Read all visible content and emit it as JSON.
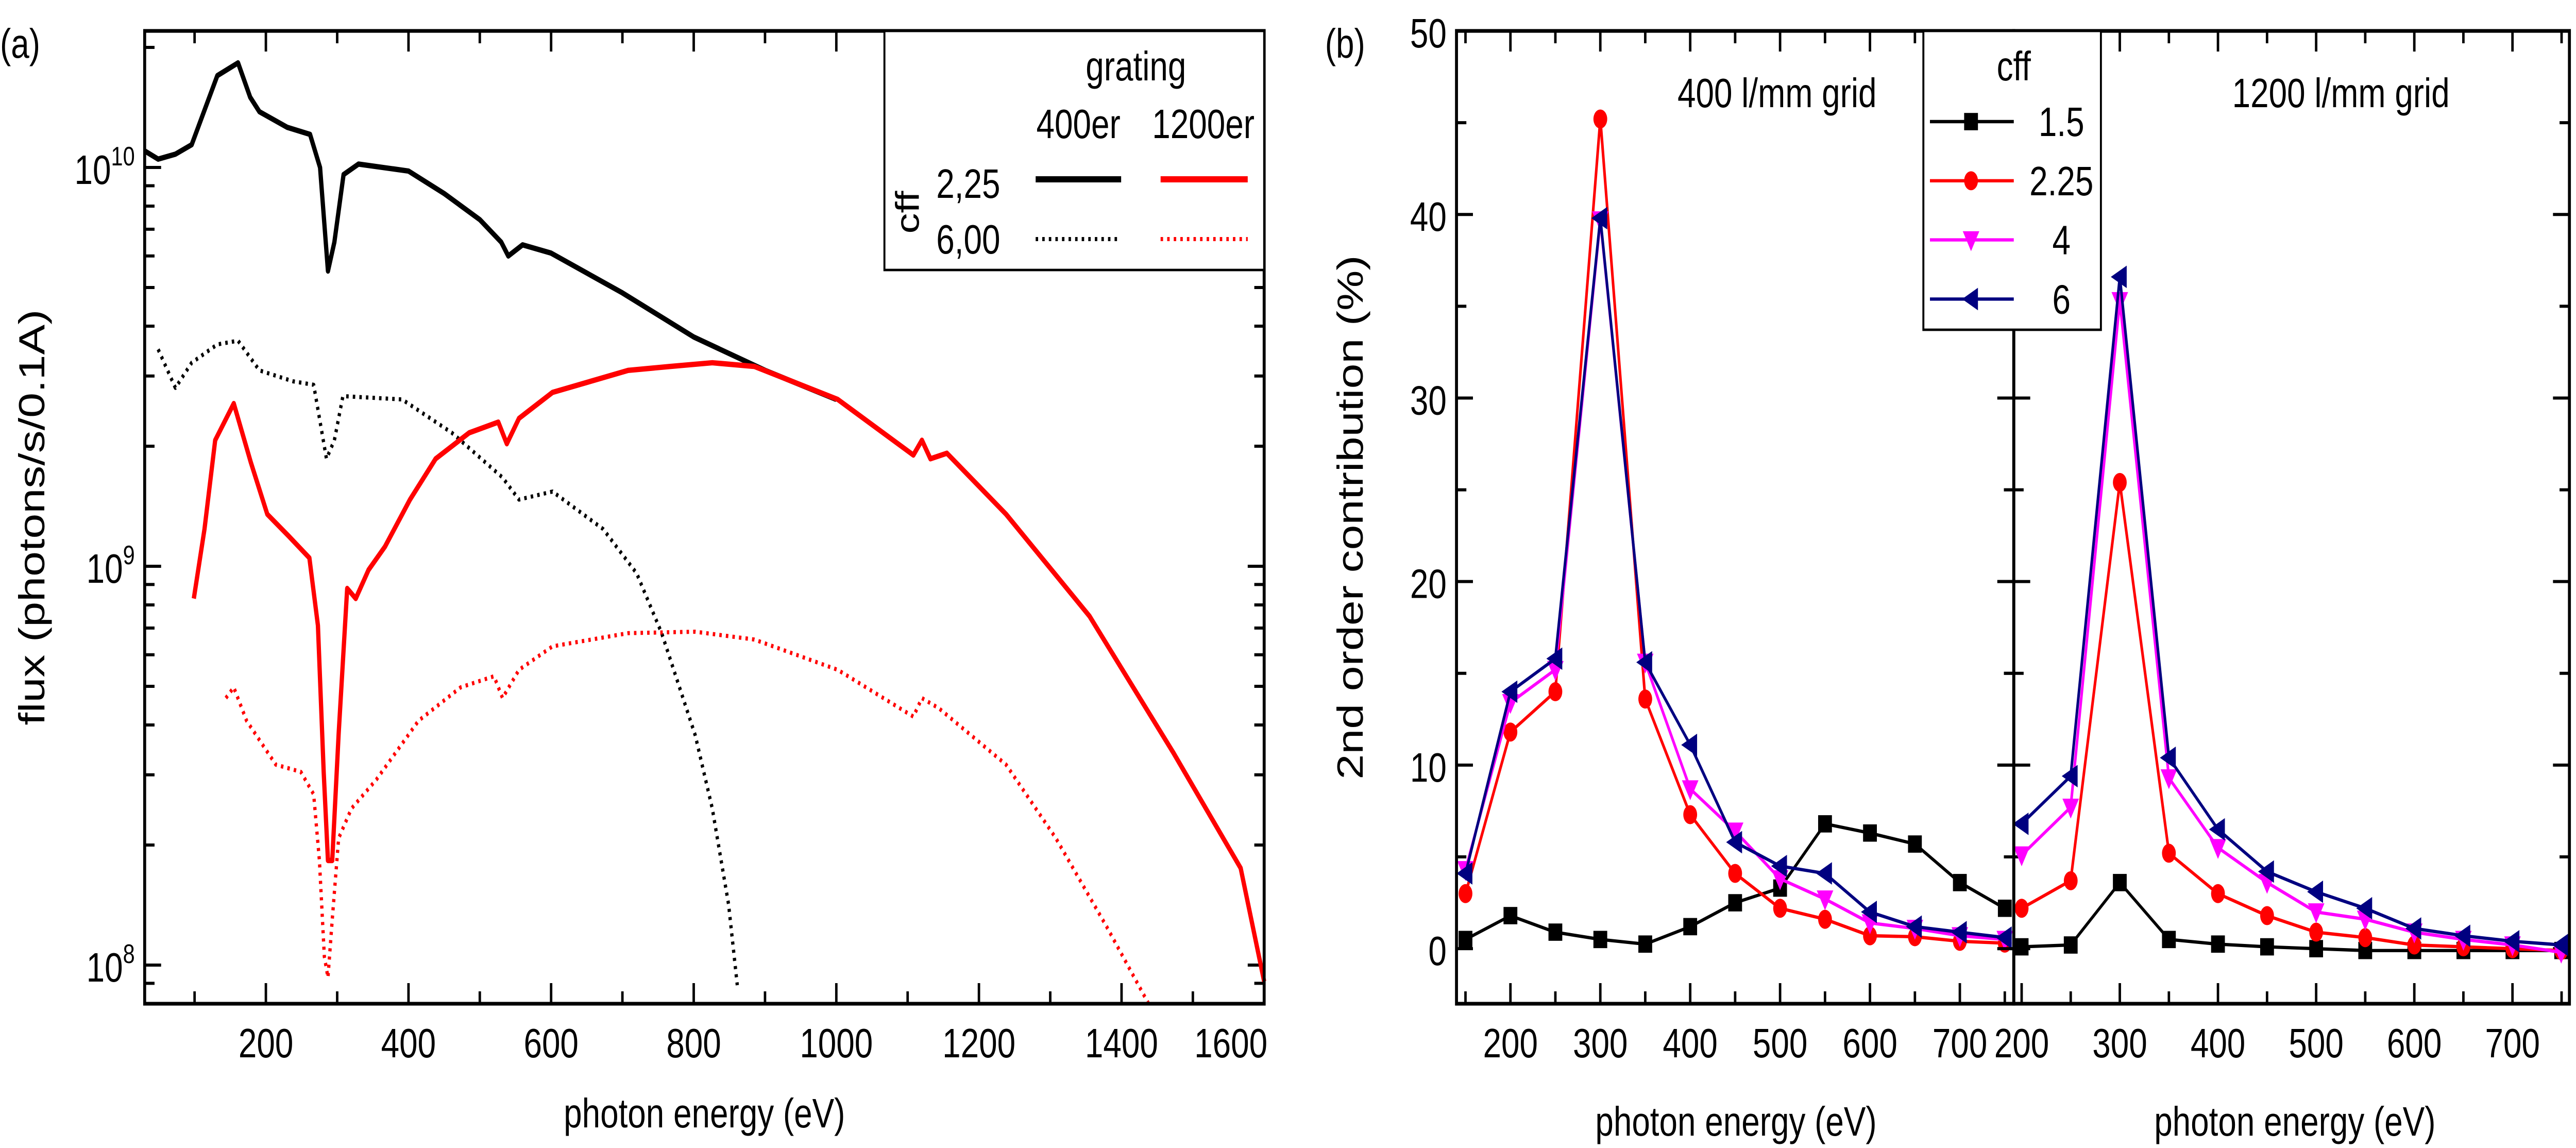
{
  "chart_data": [
    {
      "panel_label": "(a)",
      "type": "line",
      "xlabel": "photon energy (eV)",
      "ylabel": "flux (photons/s/0.1A)",
      "xlim": [
        30,
        1600
      ],
      "ylim": [
        80000000.0,
        22000000000.0
      ],
      "yscale": "log",
      "xticks": [
        200,
        400,
        600,
        800,
        1000,
        1200,
        1400,
        1600
      ],
      "yticks": [
        {
          "base": "10",
          "exp": "8",
          "value": 100000000.0
        },
        {
          "base": "10",
          "exp": "9",
          "value": 1000000000.0
        },
        {
          "base": "10",
          "exp": "10",
          "value": 10000000000.0
        }
      ],
      "grid": false,
      "legend": {
        "placement": "top-right",
        "title": "grating",
        "columns": [
          "400er",
          "1200er"
        ],
        "row_title": "cff",
        "rows": [
          "2,25",
          "6,00"
        ]
      },
      "series": [
        {
          "grating": "400er",
          "cff": "2,25",
          "color": "#000000",
          "style": "solid",
          "x": [
            30,
            49,
            73,
            96,
            132,
            161,
            178,
            191,
            230,
            262,
            276,
            287,
            296,
            309,
            330,
            400,
            450,
            500,
            530,
            540,
            560,
            600,
            700,
            800,
            900,
            1000
          ],
          "y": [
            11000000000.0,
            10500000000.0,
            10800000000.0,
            11400000000.0,
            17000000000.0,
            18300000000.0,
            15000000000.0,
            13800000000.0,
            12600000000.0,
            12100000000.0,
            10000000000.0,
            5500000000.0,
            6500000000.0,
            9600000000.0,
            10200000000.0,
            9800000000.0,
            8600000000.0,
            7400000000.0,
            6500000000.0,
            6000000000.0,
            6400000000.0,
            6100000000.0,
            4850000000.0,
            3760000000.0,
            3100000000.0,
            2620000000.0
          ]
        },
        {
          "grating": "400er",
          "cff": "6,00",
          "color": "#000000",
          "style": "dotted",
          "x": [
            49,
            73,
            96,
            132,
            161,
            191,
            238,
            267,
            285,
            296,
            308,
            391,
            461,
            532,
            555,
            602,
            673,
            720,
            755,
            802,
            826,
            849,
            861
          ],
          "y": [
            3500000000.0,
            2800000000.0,
            3240000000.0,
            3600000000.0,
            3680000000.0,
            3100000000.0,
            2910000000.0,
            2850000000.0,
            1860000000.0,
            2070000000.0,
            2670000000.0,
            2620000000.0,
            2160000000.0,
            1670000000.0,
            1470000000.0,
            1540000000.0,
            1240000000.0,
            960000000.0,
            680000000.0,
            377000000.0,
            247000000.0,
            142000000.0,
            89000000.0
          ]
        },
        {
          "grating": "1200er",
          "cff": "2,25",
          "color": "#ff0000",
          "style": "solid",
          "x": [
            99,
            114,
            129,
            155,
            179,
            202,
            232,
            261,
            273,
            281,
            287,
            293,
            302,
            314,
            326,
            344,
            367,
            402,
            438,
            485,
            526,
            538,
            555,
            602,
            708,
            767,
            826,
            885,
            1002,
            1108,
            1120,
            1132,
            1155,
            1238,
            1355,
            1473,
            1567,
            1600
          ],
          "y": [
            830000000.0,
            1240000000.0,
            2070000000.0,
            2560000000.0,
            1820000000.0,
            1350000000.0,
            1190000000.0,
            1050000000.0,
            710000000.0,
            305000000.0,
            183000000.0,
            183000000.0,
            380000000.0,
            880000000.0,
            830000000.0,
            980000000.0,
            1120000000.0,
            1470000000.0,
            1860000000.0,
            2160000000.0,
            2300000000.0,
            2030000000.0,
            2350000000.0,
            2730000000.0,
            3100000000.0,
            3170000000.0,
            3240000000.0,
            3170000000.0,
            2620000000.0,
            1900000000.0,
            2070000000.0,
            1860000000.0,
            1920000000.0,
            1350000000.0,
            750000000.0,
            340000000.0,
            175000000.0,
            91000000.0
          ]
        },
        {
          "grating": "1200er",
          "cff": "6,00",
          "color": "#ff0000",
          "style": "dotted",
          "x": [
            144,
            155,
            173,
            214,
            249,
            267,
            275,
            282,
            287,
            293,
            302,
            320,
            355,
            414,
            473,
            520,
            532,
            555,
            602,
            708,
            802,
            885,
            1002,
            1108,
            1120,
            1144,
            1238,
            1308,
            1379,
            1438
          ],
          "y": [
            467000000.0,
            497000000.0,
            410000000.0,
            318000000.0,
            305000000.0,
            268000000.0,
            183000000.0,
            105000000.0,
            93000000.0,
            130000000.0,
            208000000.0,
            247000000.0,
            292000000.0,
            410000000.0,
            497000000.0,
            530000000.0,
            467000000.0,
            550000000.0,
            630000000.0,
            680000000.0,
            685000000.0,
            655000000.0,
            550000000.0,
            420000000.0,
            467000000.0,
            440000000.0,
            318000000.0,
            208000000.0,
            125000000.0,
            80000000.0
          ]
        }
      ]
    },
    {
      "panel_label": "(b)",
      "type": "line",
      "ylabel": "2nd order contribution (%)",
      "ylim": [
        -3,
        50
      ],
      "yticks": [
        0,
        10,
        20,
        30,
        40,
        50
      ],
      "grid": false,
      "legend": {
        "placement": "top-center",
        "title": "cff",
        "entries": [
          "1.5",
          "2.25",
          "4",
          "6"
        ]
      },
      "series_styles": [
        {
          "name": "1.5",
          "color": "#000000",
          "marker": "square"
        },
        {
          "name": "2.25",
          "color": "#ff0000",
          "marker": "circle"
        },
        {
          "name": "4",
          "color": "#ff00ff",
          "marker": "triangle-down"
        },
        {
          "name": "6",
          "color": "#000080",
          "marker": "triangle-left"
        }
      ],
      "subplots": [
        {
          "annotation": "400 l/mm grid",
          "xlabel": "photon energy (eV)",
          "xlim": [
            140,
            760
          ],
          "xticks": [
            200,
            300,
            400,
            500,
            600,
            700
          ],
          "x": [
            150,
            200,
            250,
            300,
            350,
            400,
            450,
            500,
            550,
            600,
            650,
            700,
            750
          ],
          "series": [
            {
              "name": "1.5",
              "values": [
                0.5,
                1.8,
                0.9,
                0.5,
                0.25,
                1.2,
                2.5,
                3.3,
                6.8,
                6.3,
                5.7,
                3.6,
                2.2
              ]
            },
            {
              "name": "2.25",
              "values": [
                3.0,
                11.8,
                14.0,
                45.2,
                13.6,
                7.3,
                4.1,
                2.2,
                1.6,
                0.7,
                0.65,
                0.4,
                0.3
              ]
            },
            {
              "name": "4",
              "values": [
                4.3,
                13.4,
                15.2,
                39.7,
                15.6,
                8.7,
                6.4,
                3.8,
                2.7,
                1.4,
                1.1,
                0.7,
                0.5
              ]
            },
            {
              "name": "6",
              "values": [
                4.1,
                14.0,
                15.8,
                39.8,
                15.6,
                11.1,
                5.8,
                4.5,
                4.1,
                2.0,
                1.2,
                0.9,
                0.6
              ]
            }
          ]
        },
        {
          "annotation": "1200 l/mm grid",
          "xlabel": "photon energy (eV)",
          "xlim": [
            192,
            758
          ],
          "xticks": [
            200,
            300,
            400,
            500,
            600,
            700
          ],
          "x": [
            200,
            250,
            300,
            350,
            400,
            450,
            500,
            550,
            600,
            650,
            700,
            750
          ],
          "series": [
            {
              "name": "1.5",
              "values": [
                0.1,
                0.2,
                3.6,
                0.5,
                0.25,
                0.1,
                0.0,
                -0.1,
                -0.1,
                -0.1,
                -0.1,
                -0.1
              ]
            },
            {
              "name": "2.25",
              "values": [
                2.2,
                3.7,
                25.4,
                5.2,
                3.0,
                1.8,
                0.9,
                0.6,
                0.2,
                0.1,
                0.0,
                -0.1
              ]
            },
            {
              "name": "4",
              "values": [
                5.1,
                7.7,
                35.3,
                9.3,
                5.5,
                3.6,
                2.0,
                1.6,
                0.9,
                0.5,
                0.2,
                -0.2
              ]
            },
            {
              "name": "6",
              "values": [
                6.8,
                9.4,
                36.6,
                10.4,
                6.5,
                4.2,
                3.1,
                2.2,
                1.1,
                0.7,
                0.4,
                0.2
              ]
            }
          ]
        }
      ]
    }
  ]
}
